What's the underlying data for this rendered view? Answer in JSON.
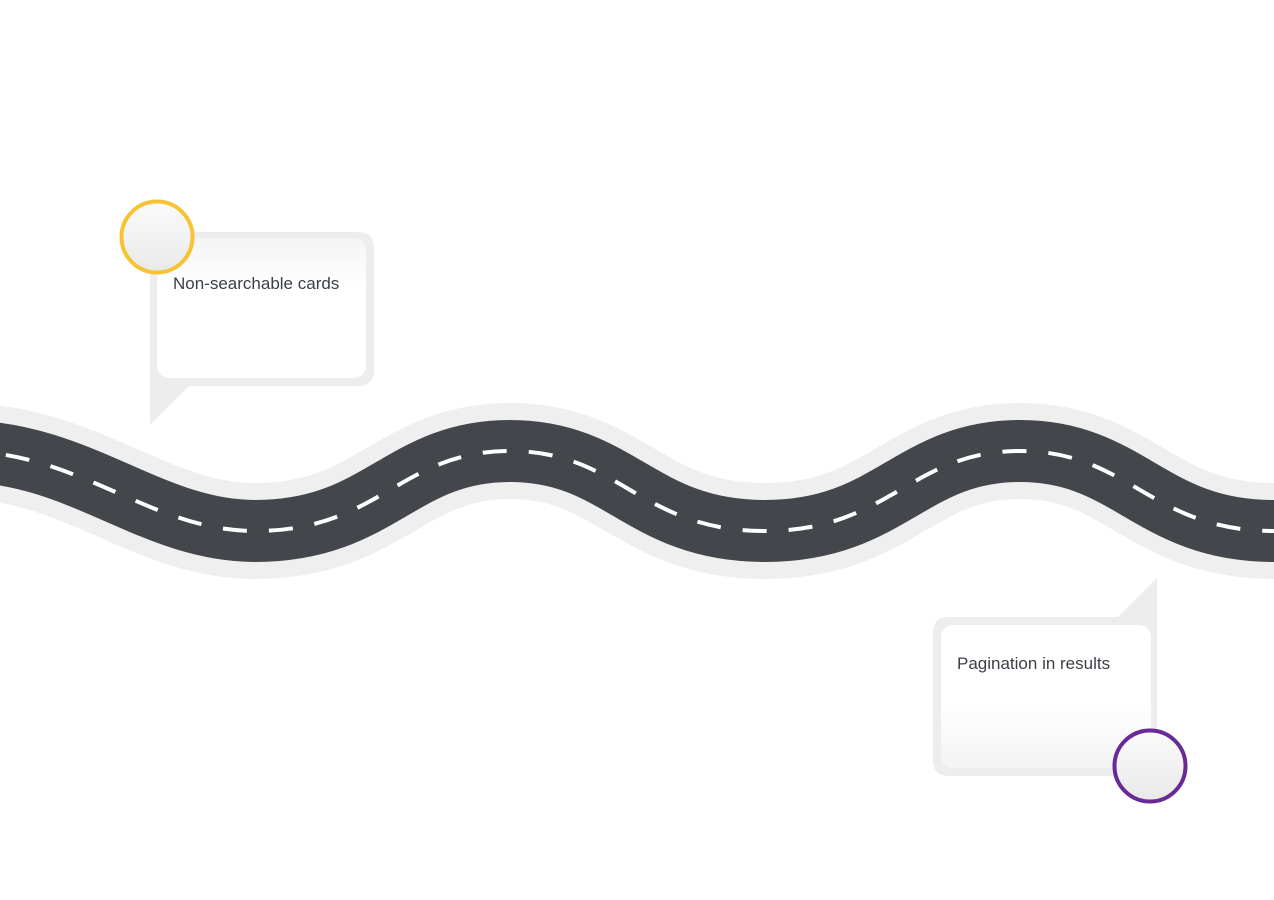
{
  "milestones": [
    {
      "label": "Non-searchable cards",
      "ring_color": "#f7c333"
    },
    {
      "label": "Pagination in results",
      "ring_color": "#6a2a96"
    }
  ],
  "road": {
    "asphalt_color": "#43464b",
    "shoulder_color": "#efefef",
    "lane_marking_color": "#ffffff"
  },
  "card": {
    "shadow_color": "#ededed",
    "face_color": "#ffffff"
  }
}
